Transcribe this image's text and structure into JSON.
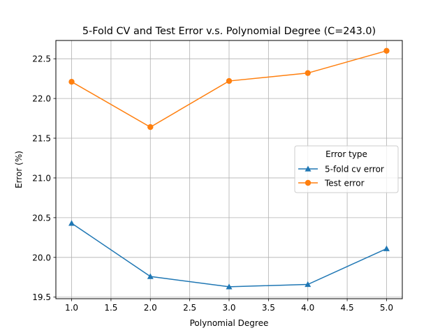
{
  "chart_data": {
    "type": "line",
    "title": "5-Fold CV and Test Error v.s. Polynomial Degree (C=243.0)",
    "xlabel": "Polynomial Degree",
    "ylabel": "Error (%)",
    "x": [
      1.0,
      2.0,
      3.0,
      4.0,
      5.0
    ],
    "xlim": [
      0.8,
      5.2
    ],
    "ylim": [
      19.48,
      22.73
    ],
    "xticks": [
      "1.0",
      "1.5",
      "2.0",
      "2.5",
      "3.0",
      "3.5",
      "4.0",
      "4.5",
      "5.0"
    ],
    "yticks": [
      "19.5",
      "20.0",
      "20.5",
      "21.0",
      "21.5",
      "22.0",
      "22.5"
    ],
    "grid": true,
    "legend": {
      "title": "Error type",
      "placement": "center-right"
    },
    "series": [
      {
        "name": "5-fold cv error",
        "values": [
          20.43,
          19.76,
          19.63,
          19.66,
          20.11
        ],
        "color": "#1f77b4",
        "marker": "triangle"
      },
      {
        "name": "Test error",
        "values": [
          22.21,
          21.64,
          22.22,
          22.32,
          22.6
        ],
        "color": "#ff7f0e",
        "marker": "circle"
      }
    ]
  }
}
